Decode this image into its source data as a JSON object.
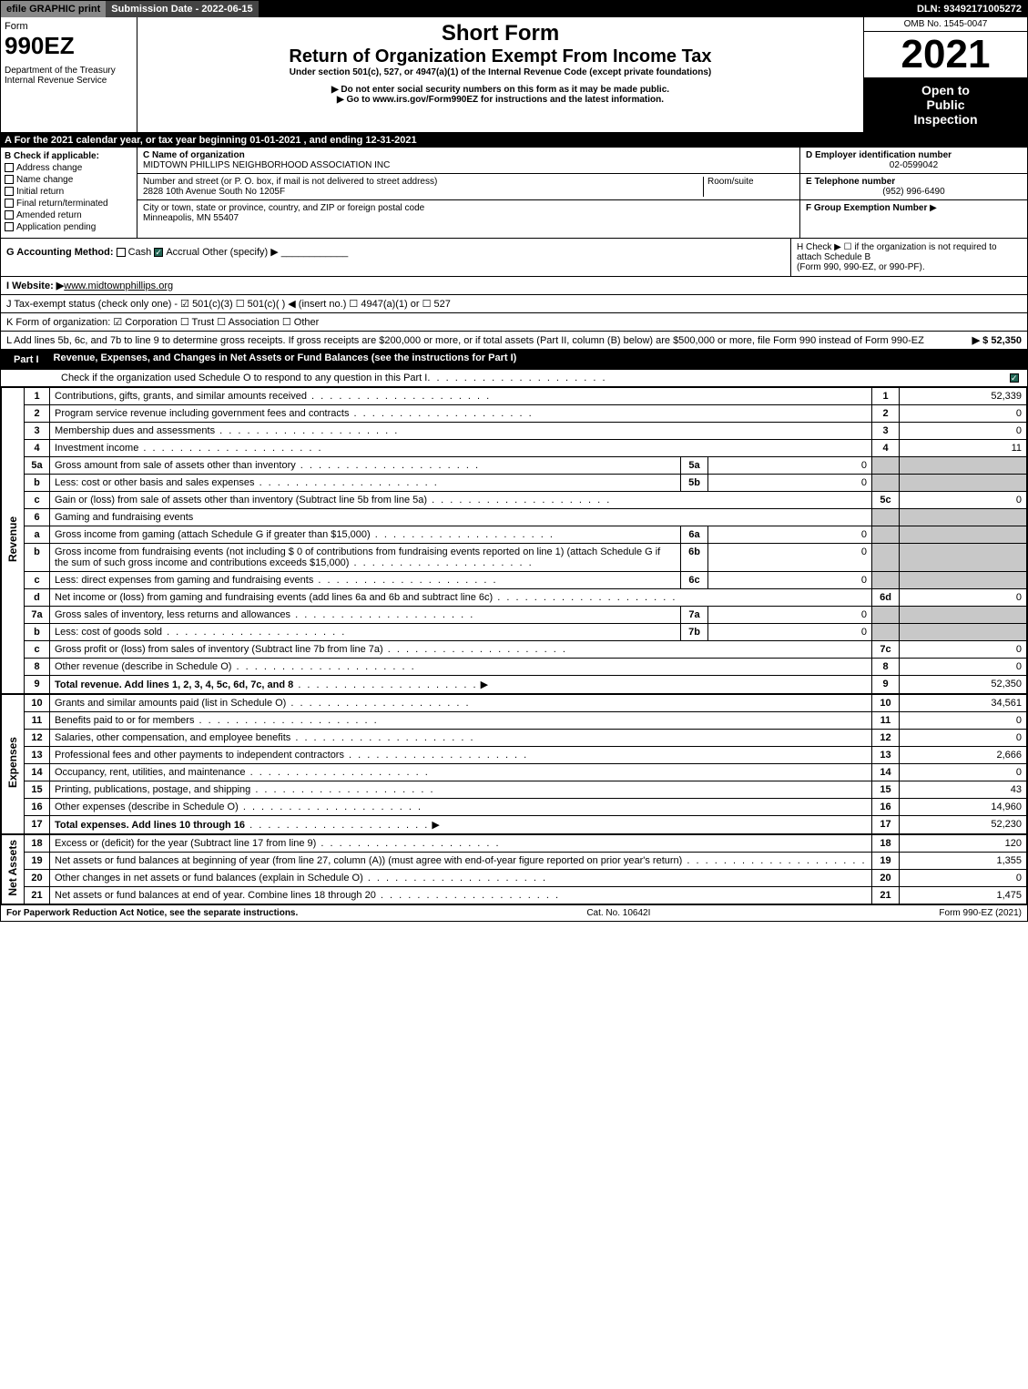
{
  "topbar": {
    "efile": "efile GRAPHIC print",
    "submission": "Submission Date - 2022-06-15",
    "dln": "DLN: 93492171005272"
  },
  "header": {
    "form_word": "Form",
    "form_no": "990EZ",
    "dept1": "Department of the Treasury",
    "dept2": "Internal Revenue Service",
    "title_short": "Short Form",
    "title_return": "Return of Organization Exempt From Income Tax",
    "subtitle": "Under section 501(c), 527, or 4947(a)(1) of the Internal Revenue Code (except private foundations)",
    "instr1": "Do not enter social security numbers on this form as it may be made public.",
    "instr2": "Go to www.irs.gov/Form990EZ for instructions and the latest information.",
    "omb": "OMB No. 1545-0047",
    "year": "2021",
    "open1": "Open to",
    "open2": "Public",
    "open3": "Inspection"
  },
  "line_a": "A  For the 2021 calendar year, or tax year beginning 01-01-2021 , and ending 12-31-2021",
  "col_b": {
    "hdr": "B  Check if applicable:",
    "items": [
      "Address change",
      "Name change",
      "Initial return",
      "Final return/terminated",
      "Amended return",
      "Application pending"
    ]
  },
  "col_c": {
    "name_lbl": "C Name of organization",
    "name": "MIDTOWN PHILLIPS NEIGHBORHOOD ASSOCIATION INC",
    "addr_lbl": "Number and street (or P. O. box, if mail is not delivered to street address)",
    "room_lbl": "Room/suite",
    "addr": "2828 10th Avenue South No 1205F",
    "city_lbl": "City or town, state or province, country, and ZIP or foreign postal code",
    "city": "Minneapolis, MN  55407"
  },
  "col_d": {
    "ein_lbl": "D Employer identification number",
    "ein": "02-0599042",
    "tel_lbl": "E Telephone number",
    "tel": "(952) 996-6490",
    "grp_lbl": "F Group Exemption Number",
    "grp_arrow": "▶"
  },
  "sec_g": {
    "label": "G Accounting Method:",
    "cash": "Cash",
    "accrual": "Accrual",
    "other": "Other (specify) ▶"
  },
  "sec_h": {
    "text1": "H  Check ▶  ☐  if the organization is not required to attach Schedule B",
    "text2": "(Form 990, 990-EZ, or 990-PF)."
  },
  "line_i": {
    "label": "I Website: ▶",
    "val": "www.midtownphillips.org"
  },
  "line_j": "J Tax-exempt status (check only one) - ☑ 501(c)(3) ☐ 501(c)(  ) ◀ (insert no.) ☐ 4947(a)(1) or ☐ 527",
  "line_k": "K Form of organization:  ☑ Corporation  ☐ Trust  ☐ Association  ☐ Other",
  "line_l": {
    "text": "L Add lines 5b, 6c, and 7b to line 9 to determine gross receipts. If gross receipts are $200,000 or more, or if total assets (Part II, column (B) below) are $500,000 or more, file Form 990 instead of Form 990-EZ",
    "amount": "▶ $ 52,350"
  },
  "part1": {
    "label": "Part I",
    "title": "Revenue, Expenses, and Changes in Net Assets or Fund Balances (see the instructions for Part I)",
    "check_o": "Check if the organization used Schedule O to respond to any question in this Part I"
  },
  "vtabs": {
    "revenue": "Revenue",
    "expenses": "Expenses",
    "netassets": "Net Assets"
  },
  "rows": [
    {
      "n": "1",
      "d": "Contributions, gifts, grants, and similar amounts received",
      "r": "1",
      "a": "52,339"
    },
    {
      "n": "2",
      "d": "Program service revenue including government fees and contracts",
      "r": "2",
      "a": "0"
    },
    {
      "n": "3",
      "d": "Membership dues and assessments",
      "r": "3",
      "a": "0"
    },
    {
      "n": "4",
      "d": "Investment income",
      "r": "4",
      "a": "11"
    },
    {
      "n": "5a",
      "d": "Gross amount from sale of assets other than inventory",
      "sl": "5a",
      "sv": "0"
    },
    {
      "n": "b",
      "d": "Less: cost or other basis and sales expenses",
      "sl": "5b",
      "sv": "0"
    },
    {
      "n": "c",
      "d": "Gain or (loss) from sale of assets other than inventory (Subtract line 5b from line 5a)",
      "r": "5c",
      "a": "0"
    },
    {
      "n": "6",
      "d": "Gaming and fundraising events"
    },
    {
      "n": "a",
      "d": "Gross income from gaming (attach Schedule G if greater than $15,000)",
      "sl": "6a",
      "sv": "0"
    },
    {
      "n": "b",
      "d": "Gross income from fundraising events (not including $ 0          of contributions from fundraising events reported on line 1) (attach Schedule G if the sum of such gross income and contributions exceeds $15,000)",
      "sl": "6b",
      "sv": "0"
    },
    {
      "n": "c",
      "d": "Less: direct expenses from gaming and fundraising events",
      "sl": "6c",
      "sv": "0"
    },
    {
      "n": "d",
      "d": "Net income or (loss) from gaming and fundraising events (add lines 6a and 6b and subtract line 6c)",
      "r": "6d",
      "a": "0"
    },
    {
      "n": "7a",
      "d": "Gross sales of inventory, less returns and allowances",
      "sl": "7a",
      "sv": "0"
    },
    {
      "n": "b",
      "d": "Less: cost of goods sold",
      "sl": "7b",
      "sv": "0"
    },
    {
      "n": "c",
      "d": "Gross profit or (loss) from sales of inventory (Subtract line 7b from line 7a)",
      "r": "7c",
      "a": "0"
    },
    {
      "n": "8",
      "d": "Other revenue (describe in Schedule O)",
      "r": "8",
      "a": "0"
    },
    {
      "n": "9",
      "d": "Total revenue. Add lines 1, 2, 3, 4, 5c, 6d, 7c, and 8",
      "r": "9",
      "a": "52,350",
      "bold": true,
      "arrow": true
    }
  ],
  "exp_rows": [
    {
      "n": "10",
      "d": "Grants and similar amounts paid (list in Schedule O)",
      "r": "10",
      "a": "34,561"
    },
    {
      "n": "11",
      "d": "Benefits paid to or for members",
      "r": "11",
      "a": "0"
    },
    {
      "n": "12",
      "d": "Salaries, other compensation, and employee benefits",
      "r": "12",
      "a": "0"
    },
    {
      "n": "13",
      "d": "Professional fees and other payments to independent contractors",
      "r": "13",
      "a": "2,666"
    },
    {
      "n": "14",
      "d": "Occupancy, rent, utilities, and maintenance",
      "r": "14",
      "a": "0"
    },
    {
      "n": "15",
      "d": "Printing, publications, postage, and shipping",
      "r": "15",
      "a": "43"
    },
    {
      "n": "16",
      "d": "Other expenses (describe in Schedule O)",
      "r": "16",
      "a": "14,960"
    },
    {
      "n": "17",
      "d": "Total expenses. Add lines 10 through 16",
      "r": "17",
      "a": "52,230",
      "bold": true,
      "arrow": true
    }
  ],
  "na_rows": [
    {
      "n": "18",
      "d": "Excess or (deficit) for the year (Subtract line 17 from line 9)",
      "r": "18",
      "a": "120"
    },
    {
      "n": "19",
      "d": "Net assets or fund balances at beginning of year (from line 27, column (A)) (must agree with end-of-year figure reported on prior year's return)",
      "r": "19",
      "a": "1,355"
    },
    {
      "n": "20",
      "d": "Other changes in net assets or fund balances (explain in Schedule O)",
      "r": "20",
      "a": "0"
    },
    {
      "n": "21",
      "d": "Net assets or fund balances at end of year. Combine lines 18 through 20",
      "r": "21",
      "a": "1,475"
    }
  ],
  "footer": {
    "left": "For Paperwork Reduction Act Notice, see the separate instructions.",
    "mid": "Cat. No. 10642I",
    "right": "Form 990-EZ (2021)"
  },
  "colors": {
    "black": "#000000",
    "white": "#ffffff",
    "shade": "#c8c8c8",
    "checkgreen": "#226655"
  }
}
